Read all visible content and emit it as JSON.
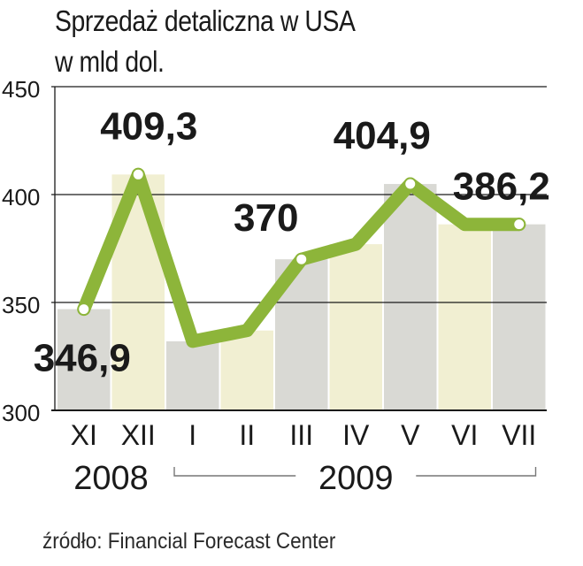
{
  "title_line1": "Sprzedaż detaliczna w USA",
  "title_line2": "w mld dol.",
  "source": "źródło: Financial Forecast Center",
  "colors": {
    "line": "#8db53a",
    "marker": "#ffffff",
    "column_gray": "#d9d9d4",
    "column_cream": "#f1efd2",
    "grid": "#1a1a1a",
    "text": "#1a1a1a"
  },
  "chart_data": {
    "type": "line",
    "categories": [
      "XI",
      "XII",
      "I",
      "II",
      "III",
      "IV",
      "V",
      "VI",
      "VII"
    ],
    "values": [
      346.9,
      409.3,
      332,
      337,
      370,
      377,
      404.9,
      386.2,
      386.2
    ],
    "data_labels": [
      {
        "index": 0,
        "text": "346,9"
      },
      {
        "index": 1,
        "text": "409,3"
      },
      {
        "index": 4,
        "text": "370"
      },
      {
        "index": 6,
        "text": "404,9"
      },
      {
        "index": 8,
        "text": "386,2"
      }
    ],
    "marked_points": [
      0,
      1,
      4,
      6,
      8
    ],
    "year_labels": [
      {
        "text": "2008",
        "from": 0,
        "to": 1
      },
      {
        "text": "2009",
        "from": 2,
        "to": 8
      }
    ],
    "yticks": [
      300,
      350,
      400,
      450
    ],
    "ylim": [
      300,
      450
    ],
    "grid": true,
    "column_pattern": [
      "gray",
      "cream",
      "gray",
      "cream",
      "gray",
      "cream",
      "gray",
      "cream",
      "gray"
    ]
  }
}
